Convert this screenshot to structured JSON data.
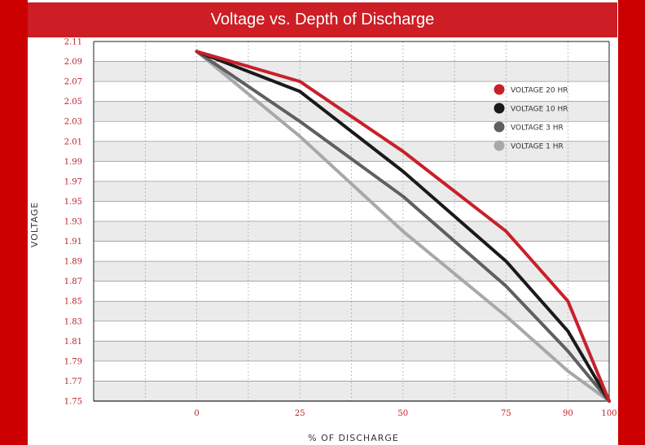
{
  "title": "Voltage vs. Depth of Discharge",
  "colors": {
    "background": "#cc0000",
    "title_bar": "#cc1e24",
    "tick_text": "#c01e24"
  },
  "chart_data": {
    "type": "line",
    "title": "Voltage vs. Depth of Discharge",
    "xlabel": "% OF DISCHARGE",
    "ylabel": "VOLTAGE",
    "x": [
      0,
      25,
      50,
      75,
      90,
      100
    ],
    "x_tick_labels": [
      "0",
      "25",
      "50",
      "75",
      "90",
      "100"
    ],
    "xlim": [
      -25,
      100
    ],
    "y_ticks": [
      1.75,
      1.77,
      1.79,
      1.81,
      1.83,
      1.85,
      1.87,
      1.89,
      1.91,
      1.93,
      1.95,
      1.97,
      1.99,
      2.01,
      2.03,
      2.05,
      2.07,
      2.09,
      2.11
    ],
    "y_tick_labels": [
      "1.75",
      "1.77",
      "1.79",
      "1.81",
      "1.83",
      "1.85",
      "1.87",
      "1.89",
      "1.91",
      "1.93",
      "1.95",
      "1.97",
      "1.99",
      "2.01",
      "2.03",
      "2.05",
      "2.07",
      "2.09",
      "2.11"
    ],
    "ylim": [
      1.75,
      2.11
    ],
    "grid": "alternating horizontal bands, dotted vertical lines",
    "legend_position": "top-right",
    "series": [
      {
        "name": "VOLTAGE 20 HR",
        "color": "#c8202a",
        "values": [
          2.1,
          2.07,
          2.0,
          1.92,
          1.85,
          1.75
        ]
      },
      {
        "name": "VOLTAGE 10 HR",
        "color": "#1a1a1a",
        "values": [
          2.1,
          2.06,
          1.98,
          1.89,
          1.82,
          1.75
        ]
      },
      {
        "name": "VOLTAGE 3 HR",
        "color": "#5f5f5f",
        "values": [
          2.1,
          2.03,
          1.955,
          1.865,
          1.8,
          1.75
        ]
      },
      {
        "name": "VOLTAGE 1 HR",
        "color": "#a8a8a8",
        "values": [
          2.1,
          2.015,
          1.92,
          1.835,
          1.78,
          1.75
        ]
      }
    ]
  }
}
